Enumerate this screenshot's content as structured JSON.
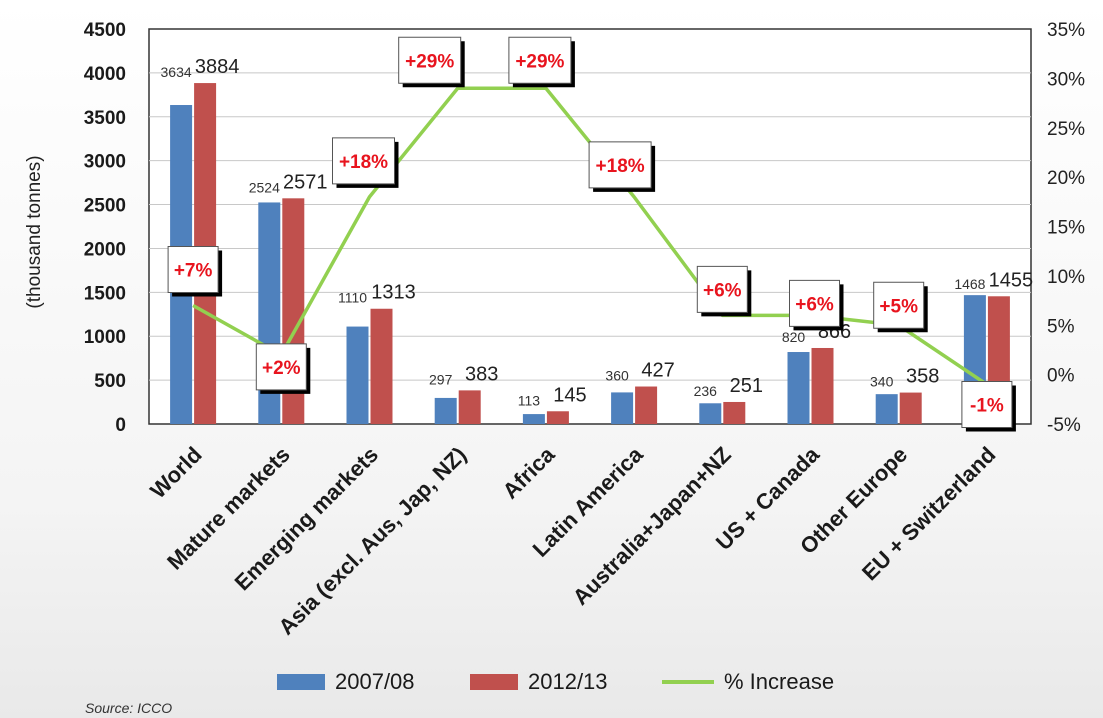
{
  "chart_data": {
    "type": "bar",
    "categories": [
      "World",
      "Mature markets",
      "Emerging markets",
      "Asia (excl. Aus, Jap, NZ)",
      "Africa",
      "Latin America",
      "Australia+Japan+NZ",
      "US + Canada",
      "Other Europe",
      "EU + Switzerland"
    ],
    "series": [
      {
        "name": "2007/08",
        "color": "#4f81bd",
        "values": [
          3634,
          2524,
          1110,
          297,
          113,
          360,
          236,
          820,
          340,
          1468
        ]
      },
      {
        "name": "2012/13",
        "color": "#c0504d",
        "values": [
          3884,
          2571,
          1313,
          383,
          145,
          427,
          251,
          866,
          358,
          1455
        ]
      }
    ],
    "line_series": {
      "name": "% Increase",
      "color": "#92d050",
      "values": [
        7,
        2,
        18,
        29,
        29,
        18,
        6,
        6,
        5,
        -1
      ],
      "labels": [
        "+7%",
        "+2%",
        "+18%",
        "+29%",
        "+29%",
        "+18%",
        "+6%",
        "+6%",
        "+5%",
        "-1%"
      ]
    },
    "value_labels": {
      "series_1": [
        "3634",
        "2524",
        "1110",
        "297",
        "113",
        "360",
        "236",
        "820",
        "340",
        "1468"
      ],
      "series_2": [
        "3884",
        "2571",
        "1313",
        "383",
        "145",
        "427",
        "251",
        "866",
        "358",
        "1455"
      ]
    },
    "y_axis_left": {
      "title": "(thousand tonnes)",
      "min": 0,
      "max": 4500,
      "step": 500,
      "ticks": [
        "0",
        "500",
        "1000",
        "1500",
        "2000",
        "2500",
        "3000",
        "3500",
        "4000",
        "4500"
      ]
    },
    "y_axis_right": {
      "min": -5,
      "max": 35,
      "step": 5,
      "ticks": [
        "-5%",
        "0%",
        "5%",
        "10%",
        "15%",
        "20%",
        "25%",
        "30%",
        "35%"
      ]
    },
    "grid": true,
    "legend": {
      "position": "bottom",
      "items": [
        {
          "label": "2007/08",
          "kind": "box",
          "color": "#4f81bd"
        },
        {
          "label": "2012/13",
          "kind": "box",
          "color": "#c0504d"
        },
        {
          "label": "% Increase",
          "kind": "line",
          "color": "#92d050"
        }
      ]
    },
    "source": "Source: ICCO"
  }
}
